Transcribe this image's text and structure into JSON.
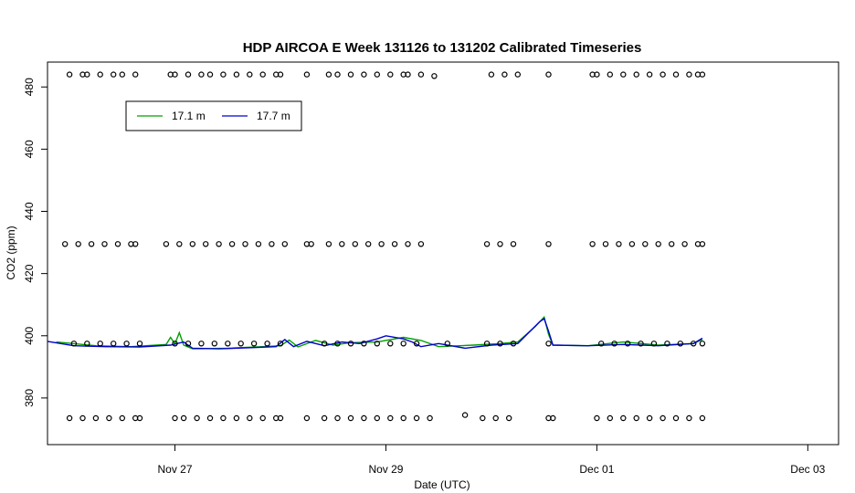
{
  "chart_data": {
    "type": "scatter",
    "title": "HDP AIRCOA E  Week 131126 to 131202  Calibrated Timeseries",
    "xlabel": "Date (UTC)",
    "ylabel": "CO2 (ppm)",
    "x_unit": "date",
    "xlim": [
      "2013-11-25 19:00",
      "2013-12-03 07:00"
    ],
    "ylim": [
      365,
      488
    ],
    "x_ticks": [
      {
        "label": "Nov 27",
        "date": "2013-11-27 00:00"
      },
      {
        "label": "Nov 29",
        "date": "2013-11-29 00:00"
      },
      {
        "label": "Dec 01",
        "date": "2013-12-01 00:00"
      },
      {
        "label": "Dec 03",
        "date": "2013-12-03 00:00"
      }
    ],
    "y_ticks": [
      380,
      400,
      420,
      440,
      460,
      480
    ],
    "grid": false,
    "legend": {
      "placement": "top-left",
      "entries": [
        {
          "label": "17.1 m",
          "color": "#00a000"
        },
        {
          "label": "17.7 m",
          "color": "#0000cc"
        }
      ]
    },
    "series": [
      {
        "name": "17.1 m",
        "kind": "line",
        "color": "#00a000",
        "points": [
          [
            "2013-11-25 21:00",
            398.0
          ],
          [
            "2013-11-26 06:00",
            396.8
          ],
          [
            "2013-11-26 14:00",
            396.5
          ],
          [
            "2013-11-26 22:00",
            397.2
          ],
          [
            "2013-11-26 23:00",
            399.5
          ],
          [
            "2013-11-27 00:00",
            397.4
          ],
          [
            "2013-11-27 01:00",
            401.0
          ],
          [
            "2013-11-27 02:00",
            397.0
          ],
          [
            "2013-11-27 04:00",
            395.8
          ],
          [
            "2013-11-27 12:00",
            396.0
          ],
          [
            "2013-11-27 20:00",
            396.5
          ],
          [
            "2013-11-28 00:00",
            396.8
          ],
          [
            "2013-11-28 02:00",
            398.6
          ],
          [
            "2013-11-28 04:00",
            396.4
          ],
          [
            "2013-11-28 08:00",
            398.5
          ],
          [
            "2013-11-28 12:00",
            397.0
          ],
          [
            "2013-11-28 16:00",
            397.8
          ],
          [
            "2013-11-28 22:00",
            398.0
          ],
          [
            "2013-11-29 04:00",
            399.5
          ],
          [
            "2013-11-29 08:00",
            398.5
          ],
          [
            "2013-11-29 12:00",
            396.5
          ],
          [
            "2013-11-29 20:00",
            397.0
          ],
          [
            "2013-11-30 02:00",
            397.5
          ],
          [
            "2013-11-30 06:00",
            398.0
          ],
          [
            "2013-11-30 10:00",
            403.0
          ],
          [
            "2013-11-30 12:00",
            406.0
          ],
          [
            "2013-11-30 13:00",
            400.5
          ],
          [
            "2013-11-30 14:00",
            397.0
          ],
          [
            "2013-11-30 22:00",
            396.8
          ],
          [
            "2013-12-01 06:00",
            398.0
          ],
          [
            "2013-12-01 14:00",
            397.0
          ],
          [
            "2013-12-01 22:00",
            397.5
          ],
          [
            "2013-12-02 00:00",
            398.8
          ]
        ]
      },
      {
        "name": "17.7 m",
        "kind": "line",
        "color": "#0000cc",
        "points": [
          [
            "2013-11-25 19:00",
            398.2
          ],
          [
            "2013-11-26 01:00",
            396.8
          ],
          [
            "2013-11-26 08:00",
            396.5
          ],
          [
            "2013-11-26 16:00",
            396.4
          ],
          [
            "2013-11-26 23:00",
            397.0
          ],
          [
            "2013-11-27 02:00",
            398.0
          ],
          [
            "2013-11-27 04:00",
            396.0
          ],
          [
            "2013-11-27 10:00",
            395.8
          ],
          [
            "2013-11-27 18:00",
            396.2
          ],
          [
            "2013-11-27 23:00",
            396.5
          ],
          [
            "2013-11-28 01:00",
            398.8
          ],
          [
            "2013-11-28 03:00",
            396.5
          ],
          [
            "2013-11-28 06:00",
            398.2
          ],
          [
            "2013-11-28 10:00",
            396.8
          ],
          [
            "2013-11-28 14:00",
            398.0
          ],
          [
            "2013-11-28 18:00",
            397.5
          ],
          [
            "2013-11-28 22:00",
            399.0
          ],
          [
            "2013-11-29 00:00",
            400.0
          ],
          [
            "2013-11-29 04:00",
            399.0
          ],
          [
            "2013-11-29 06:00",
            398.0
          ],
          [
            "2013-11-29 08:00",
            396.5
          ],
          [
            "2013-11-29 12:00",
            397.5
          ],
          [
            "2013-11-29 18:00",
            396.0
          ],
          [
            "2013-11-30 00:00",
            397.0
          ],
          [
            "2013-11-30 06:00",
            397.5
          ],
          [
            "2013-11-30 11:00",
            404.5
          ],
          [
            "2013-11-30 12:00",
            405.5
          ],
          [
            "2013-11-30 13:00",
            401.5
          ],
          [
            "2013-11-30 14:00",
            397.0
          ],
          [
            "2013-11-30 22:00",
            396.8
          ],
          [
            "2013-12-01 06:00",
            397.2
          ],
          [
            "2013-12-01 14:00",
            396.8
          ],
          [
            "2013-12-01 22:00",
            397.5
          ],
          [
            "2013-12-02 00:00",
            399.2
          ]
        ]
      }
    ],
    "calibration_points": {
      "kind": "scatter",
      "marker": "open-circle",
      "levels": [
        {
          "y": 484.0,
          "x": [
            "2013-11-26 00:00",
            "2013-11-26 03:00",
            "2013-11-26 04:00",
            "2013-11-26 07:00",
            "2013-11-26 10:00",
            "2013-11-26 12:00",
            "2013-11-26 15:00",
            "2013-11-26 23:00",
            "2013-11-27 00:00",
            "2013-11-27 03:00",
            "2013-11-27 06:00",
            "2013-11-27 08:00",
            "2013-11-27 11:00",
            "2013-11-27 14:00",
            "2013-11-27 17:00",
            "2013-11-27 20:00",
            "2013-11-27 23:00",
            "2013-11-28 00:00",
            "2013-11-28 06:00",
            "2013-11-28 11:00",
            "2013-11-28 13:00",
            "2013-11-28 16:00",
            "2013-11-28 19:00",
            "2013-11-28 22:00",
            "2013-11-29 01:00",
            "2013-11-29 04:00",
            "2013-11-29 05:00",
            "2013-11-29 08:00",
            "2013-11-30 00:00",
            "2013-11-30 03:00",
            "2013-11-30 06:00",
            "2013-11-30 13:00",
            "2013-11-30 23:00",
            "2013-12-01 00:00",
            "2013-12-01 03:00",
            "2013-12-01 06:00",
            "2013-12-01 09:00",
            "2013-12-01 12:00",
            "2013-12-01 15:00",
            "2013-12-01 18:00",
            "2013-12-01 21:00",
            "2013-12-01 23:00",
            "2013-12-02 00:00"
          ]
        },
        {
          "y": 429.5,
          "x": [
            "2013-11-25 23:00",
            "2013-11-26 02:00",
            "2013-11-26 05:00",
            "2013-11-26 08:00",
            "2013-11-26 11:00",
            "2013-11-26 14:00",
            "2013-11-26 15:00",
            "2013-11-26 22:00",
            "2013-11-27 01:00",
            "2013-11-27 04:00",
            "2013-11-27 07:00",
            "2013-11-27 10:00",
            "2013-11-27 13:00",
            "2013-11-27 16:00",
            "2013-11-27 19:00",
            "2013-11-27 22:00",
            "2013-11-28 01:00",
            "2013-11-28 06:00",
            "2013-11-28 07:00",
            "2013-11-28 11:00",
            "2013-11-28 14:00",
            "2013-11-28 17:00",
            "2013-11-28 20:00",
            "2013-11-28 23:00",
            "2013-11-29 02:00",
            "2013-11-29 05:00",
            "2013-11-29 08:00",
            "2013-11-29 23:00",
            "2013-11-30 02:00",
            "2013-11-30 05:00",
            "2013-11-30 13:00",
            "2013-11-30 23:00",
            "2013-12-01 02:00",
            "2013-12-01 05:00",
            "2013-12-01 08:00",
            "2013-12-01 11:00",
            "2013-12-01 14:00",
            "2013-12-01 17:00",
            "2013-12-01 20:00",
            "2013-12-01 23:00",
            "2013-12-02 00:00"
          ]
        },
        {
          "y": 397.5,
          "x": [
            "2013-11-26 01:00",
            "2013-11-26 04:00",
            "2013-11-26 07:00",
            "2013-11-26 10:00",
            "2013-11-26 13:00",
            "2013-11-26 16:00",
            "2013-11-27 00:00",
            "2013-11-27 03:00",
            "2013-11-27 06:00",
            "2013-11-27 09:00",
            "2013-11-27 12:00",
            "2013-11-27 15:00",
            "2013-11-27 18:00",
            "2013-11-27 21:00",
            "2013-11-28 00:00",
            "2013-11-28 10:00",
            "2013-11-28 13:00",
            "2013-11-28 16:00",
            "2013-11-28 19:00",
            "2013-11-28 22:00",
            "2013-11-29 01:00",
            "2013-11-29 04:00",
            "2013-11-29 07:00",
            "2013-11-29 14:00",
            "2013-11-29 23:00",
            "2013-11-30 02:00",
            "2013-11-30 05:00",
            "2013-11-30 13:00",
            "2013-12-01 01:00",
            "2013-12-01 04:00",
            "2013-12-01 07:00",
            "2013-12-01 10:00",
            "2013-12-01 13:00",
            "2013-12-01 16:00",
            "2013-12-01 19:00",
            "2013-12-01 22:00",
            "2013-12-02 00:00"
          ]
        },
        {
          "y": 373.5,
          "x": [
            "2013-11-26 00:00",
            "2013-11-26 03:00",
            "2013-11-26 06:00",
            "2013-11-26 09:00",
            "2013-11-26 12:00",
            "2013-11-26 15:00",
            "2013-11-26 16:00",
            "2013-11-27 00:00",
            "2013-11-27 02:00",
            "2013-11-27 05:00",
            "2013-11-27 08:00",
            "2013-11-27 11:00",
            "2013-11-27 14:00",
            "2013-11-27 17:00",
            "2013-11-27 20:00",
            "2013-11-27 23:00",
            "2013-11-28 00:00",
            "2013-11-28 06:00",
            "2013-11-28 10:00",
            "2013-11-28 13:00",
            "2013-11-28 16:00",
            "2013-11-28 19:00",
            "2013-11-28 22:00",
            "2013-11-29 01:00",
            "2013-11-29 04:00",
            "2013-11-29 07:00",
            "2013-11-29 10:00",
            "2013-11-29 22:00",
            "2013-11-30 01:00",
            "2013-11-30 04:00",
            "2013-11-30 13:00",
            "2013-11-30 14:00",
            "2013-12-01 00:00",
            "2013-12-01 03:00",
            "2013-12-01 06:00",
            "2013-12-01 09:00",
            "2013-12-01 12:00",
            "2013-12-01 15:00",
            "2013-12-01 18:00",
            "2013-12-01 21:00",
            "2013-12-02 00:00"
          ]
        },
        {
          "y": 374.5,
          "x": [
            "2013-11-29 18:00"
          ]
        },
        {
          "y": 483.5,
          "x": [
            "2013-11-29 11:00"
          ]
        }
      ]
    }
  }
}
